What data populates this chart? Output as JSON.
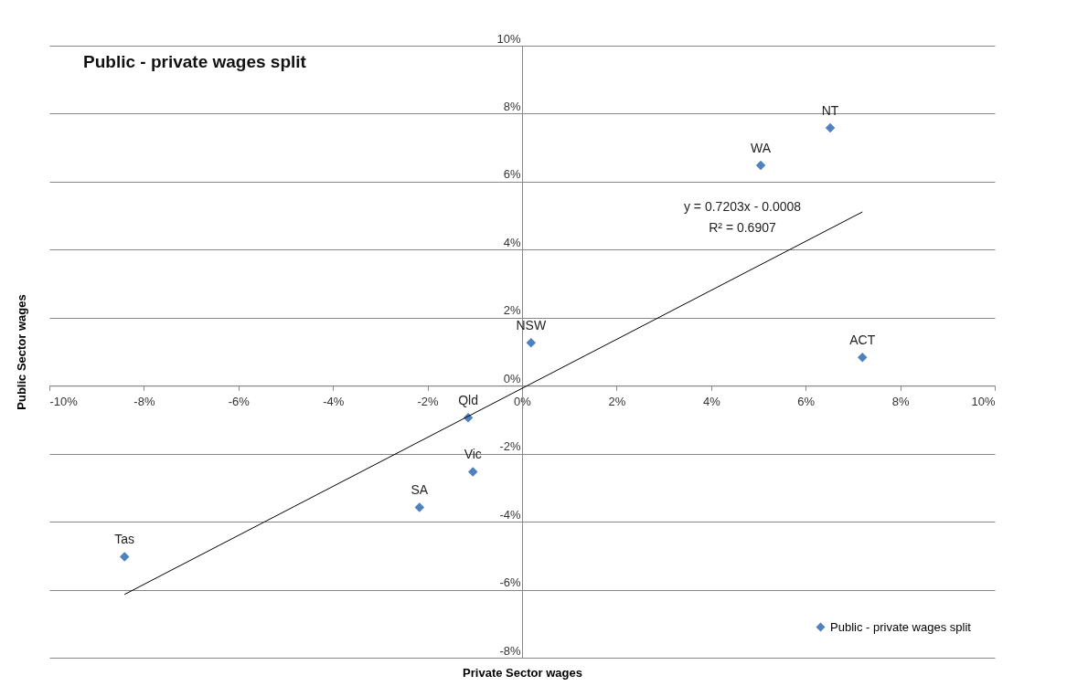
{
  "chart_data": {
    "type": "scatter",
    "title": "Public - private wages split",
    "xlabel": "Private Sector wages",
    "ylabel": "Public Sector wages",
    "series": [
      {
        "name": "Public - private wages split",
        "marker": "diamond",
        "color": "#4f81bd",
        "x": [
          6.52,
          5.05,
          7.2,
          0.19,
          -1.14,
          -1.04,
          -2.17,
          -8.41
        ],
        "values": [
          7.58,
          6.48,
          0.83,
          1.26,
          -0.94,
          -2.53,
          -3.58,
          -5.03
        ]
      },
      {
        "type": "line",
        "color": "#000000",
        "x": [
          -8.41,
          7.2
        ],
        "values": [
          -6.14,
          5.11
        ]
      }
    ],
    "annotations": [
      {
        "text": "NT",
        "x": 6.52,
        "y": 7.58
      },
      {
        "text": "WA",
        "x": 5.05,
        "y": 6.48
      },
      {
        "text": "ACT",
        "x": 7.2,
        "y": 0.83
      },
      {
        "text": "NSW",
        "x": 0.19,
        "y": 1.26
      },
      {
        "text": "Qld",
        "x": -1.14,
        "y": -0.94
      },
      {
        "text": "Vic",
        "x": -1.04,
        "y": -2.53
      },
      {
        "text": "SA",
        "x": -2.17,
        "y": -3.58
      },
      {
        "text": "Tas",
        "x": -8.41,
        "y": -5.03
      },
      "y = 0.7203x - 0.0008",
      "R² = 0.6907"
    ],
    "xlim": [
      -10,
      10
    ],
    "ylim": [
      -8,
      10
    ],
    "xticks": [
      {
        "value": -10,
        "label": "-10%"
      },
      {
        "value": -8,
        "label": "-8%"
      },
      {
        "value": -6,
        "label": "-6%"
      },
      {
        "value": -4,
        "label": "-4%"
      },
      {
        "value": -2,
        "label": "-2%"
      },
      {
        "value": 0,
        "label": "0%"
      },
      {
        "value": 2,
        "label": "2%"
      },
      {
        "value": 4,
        "label": "4%"
      },
      {
        "value": 6,
        "label": "6%"
      },
      {
        "value": 8,
        "label": "8%"
      },
      {
        "value": 10,
        "label": "10%"
      }
    ],
    "yticks": [
      {
        "value": -8,
        "label": "-8%"
      },
      {
        "value": -6,
        "label": "-6%"
      },
      {
        "value": -4,
        "label": "-4%"
      },
      {
        "value": -2,
        "label": "-2%"
      },
      {
        "value": 0,
        "label": "0%"
      },
      {
        "value": 2,
        "label": "2%"
      },
      {
        "value": 4,
        "label": "4%"
      },
      {
        "value": 6,
        "label": "6%"
      },
      {
        "value": 8,
        "label": "8%"
      },
      {
        "value": 10,
        "label": "10%"
      }
    ],
    "grid": "y",
    "legend": "bottom right",
    "line_style": "solid"
  }
}
